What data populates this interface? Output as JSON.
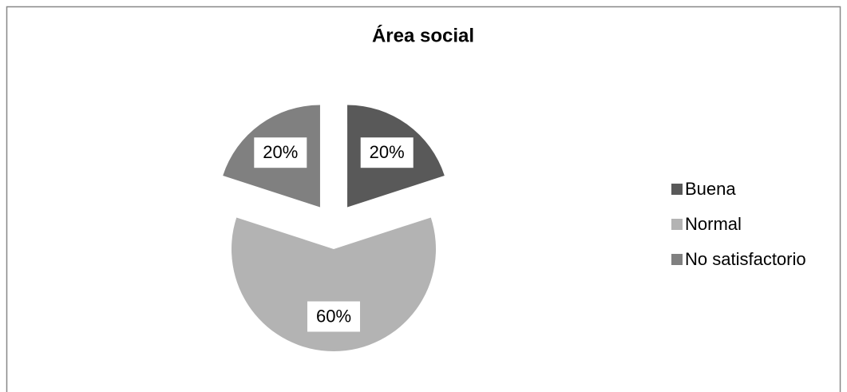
{
  "chart_data": {
    "type": "pie",
    "title": "Área social",
    "categories": [
      "Buena",
      "Normal",
      "No satisfactorio"
    ],
    "values": [
      20,
      60,
      20
    ],
    "value_labels": [
      "20%",
      "60%",
      "20%"
    ],
    "colors": [
      "#595959",
      "#b3b3b3",
      "#808080"
    ],
    "exploded": true,
    "legend": "right"
  }
}
